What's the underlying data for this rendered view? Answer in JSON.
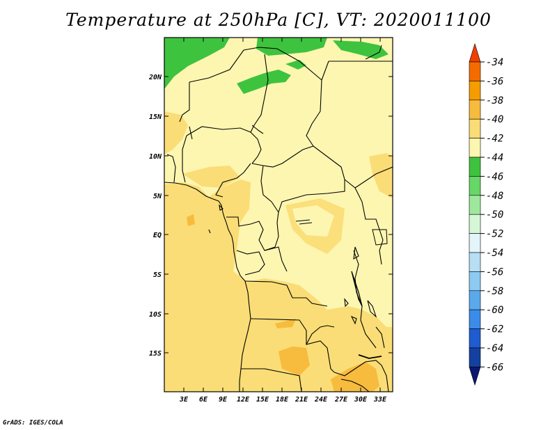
{
  "title": "Temperature at 250hPa [C], VT: 2020011100",
  "footer": "GrADS: IGES/COLA",
  "map": {
    "lat_labels": [
      "20N",
      "15N",
      "10N",
      "5N",
      "EQ",
      "5S",
      "10S",
      "15S"
    ],
    "lon_labels": [
      "3E",
      "6E",
      "9E",
      "12E",
      "15E",
      "18E",
      "21E",
      "24E",
      "27E",
      "30E",
      "33E"
    ]
  },
  "colorbar": {
    "levels": [
      "-34",
      "-36",
      "-38",
      "-40",
      "-42",
      "-44",
      "-46",
      "-48",
      "-50",
      "-52",
      "-54",
      "-56",
      "-58",
      "-60",
      "-62",
      "-64",
      "-66"
    ],
    "colors": [
      "#f04000",
      "#f46c00",
      "#f59c00",
      "#f7bb3e",
      "#fadd76",
      "#fdf6b0",
      "#3ec33e",
      "#67d767",
      "#9ee89e",
      "#d6f7d6",
      "#e4f4fb",
      "#b6dff5",
      "#8ccbf2",
      "#5aa9ec",
      "#3a8ce8",
      "#1e5cd0",
      "#14419f",
      "#0a1870"
    ]
  }
}
